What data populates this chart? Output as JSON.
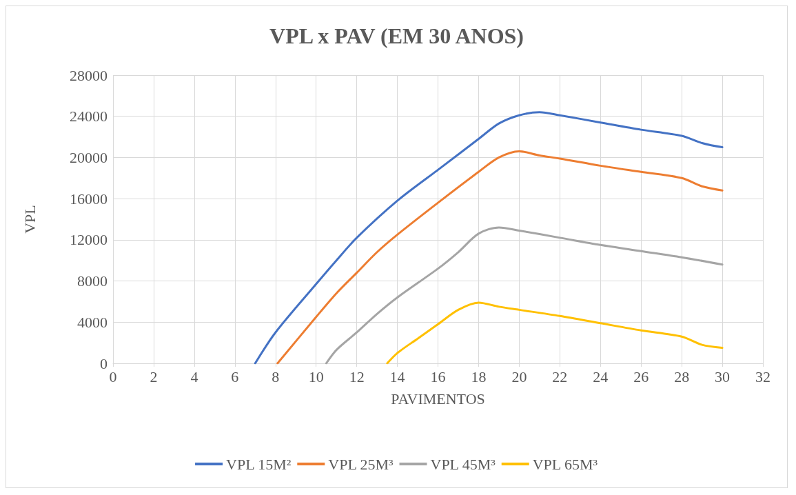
{
  "chart_data": {
    "type": "line",
    "title": "VPL x PAV (EM 30 ANOS)",
    "xlabel": "PAVIMENTOS",
    "ylabel": "VPL",
    "xlim": [
      0,
      32
    ],
    "xticks": [
      0,
      2,
      4,
      6,
      8,
      10,
      12,
      14,
      16,
      18,
      20,
      22,
      24,
      26,
      28,
      30,
      32
    ],
    "ylim": [
      0,
      28000
    ],
    "yticks": [
      0,
      4000,
      8000,
      12000,
      16000,
      20000,
      24000,
      28000
    ],
    "grid": true,
    "legend": "bottom",
    "marker": "none",
    "line_style": "solid",
    "series": [
      {
        "name": "VPL 15M²",
        "color": "#4472c4",
        "x": [
          7,
          8,
          10,
          11,
          12,
          14,
          16,
          18,
          19,
          20,
          21,
          22,
          24,
          26,
          28,
          29,
          30
        ],
        "values": [
          0,
          3000,
          7700,
          10000,
          12200,
          15800,
          18800,
          21800,
          23300,
          24100,
          24400,
          24100,
          23400,
          22700,
          22100,
          21400,
          21000
        ]
      },
      {
        "name": "VPL 25M³",
        "color": "#ed7d31",
        "x": [
          8.1,
          10,
          11,
          12,
          13,
          14,
          16,
          18,
          19,
          20,
          21,
          22,
          24,
          26,
          28,
          29,
          30
        ],
        "values": [
          0,
          4500,
          6800,
          8800,
          10800,
          12500,
          15600,
          18600,
          20000,
          20600,
          20200,
          19900,
          19200,
          18600,
          18000,
          17200,
          16800
        ]
      },
      {
        "name": "VPL 45M³",
        "color": "#a5a5a5",
        "x": [
          10.5,
          11,
          12,
          13,
          14,
          16,
          17,
          18,
          19,
          20,
          22,
          24,
          26,
          28,
          30
        ],
        "values": [
          0,
          1300,
          3000,
          4800,
          6400,
          9200,
          10800,
          12600,
          13200,
          12900,
          12200,
          11500,
          10900,
          10300,
          9600
        ]
      },
      {
        "name": "VPL 65M³",
        "color": "#ffc000",
        "x": [
          13.5,
          14,
          15,
          16,
          17,
          18,
          19,
          20,
          22,
          24,
          26,
          28,
          29,
          30
        ],
        "values": [
          0,
          1000,
          2400,
          3800,
          5200,
          5900,
          5500,
          5200,
          4600,
          3900,
          3200,
          2600,
          1800,
          1500
        ]
      }
    ]
  }
}
